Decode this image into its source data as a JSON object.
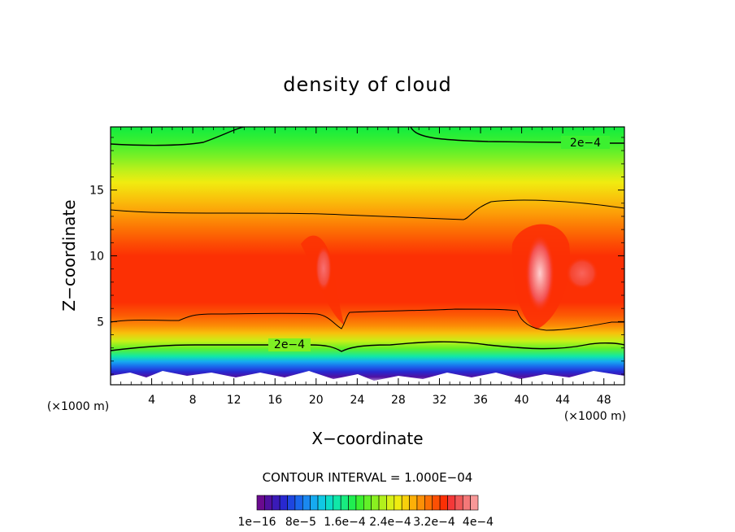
{
  "chart_data": {
    "type": "heatmap",
    "title": "density of cloud",
    "xlabel": "X−coordinate",
    "ylabel": "Z−coordinate",
    "x_unit_left": "(×1000 m)",
    "x_unit_right": "(×1000 m)",
    "xlim": [
      0,
      50
    ],
    "ylim": [
      0.2,
      19.8
    ],
    "x_ticks": [
      4,
      8,
      12,
      16,
      20,
      24,
      28,
      32,
      36,
      40,
      44,
      48
    ],
    "x_tick_labels": [
      "4",
      "8",
      "12",
      "16",
      "20",
      "24",
      "28",
      "32",
      "36",
      "40",
      "44",
      "48"
    ],
    "y_ticks": [
      5,
      10,
      15
    ],
    "y_tick_labels": [
      "5",
      "10",
      "15"
    ],
    "contour_line_labels": [
      "2e−4",
      "2e−4"
    ],
    "contour_interval": "CONTOUR INTERVAL = 1.000E−04",
    "colorbar": {
      "colors": [
        "#6a0a8f",
        "#5010a0",
        "#3a1ab8",
        "#2828d0",
        "#1e46e0",
        "#1a66ec",
        "#1a88f0",
        "#16aaf0",
        "#10c8e4",
        "#0cdcc8",
        "#10e8a8",
        "#18ec80",
        "#20ee50",
        "#3cf030",
        "#62f028",
        "#8af020",
        "#b2f01c",
        "#d8f018",
        "#f0ec10",
        "#f8d00c",
        "#fcb008",
        "#fc9006",
        "#fc7004",
        "#fc5004",
        "#fc3004",
        "#f43838",
        "#f05858",
        "#f47878",
        "#f89898"
      ],
      "tick_labels": [
        "1e−16",
        "8e−5",
        "1.6e−4",
        "2.4e−4",
        "3.2e−4",
        "4e−4"
      ]
    }
  }
}
